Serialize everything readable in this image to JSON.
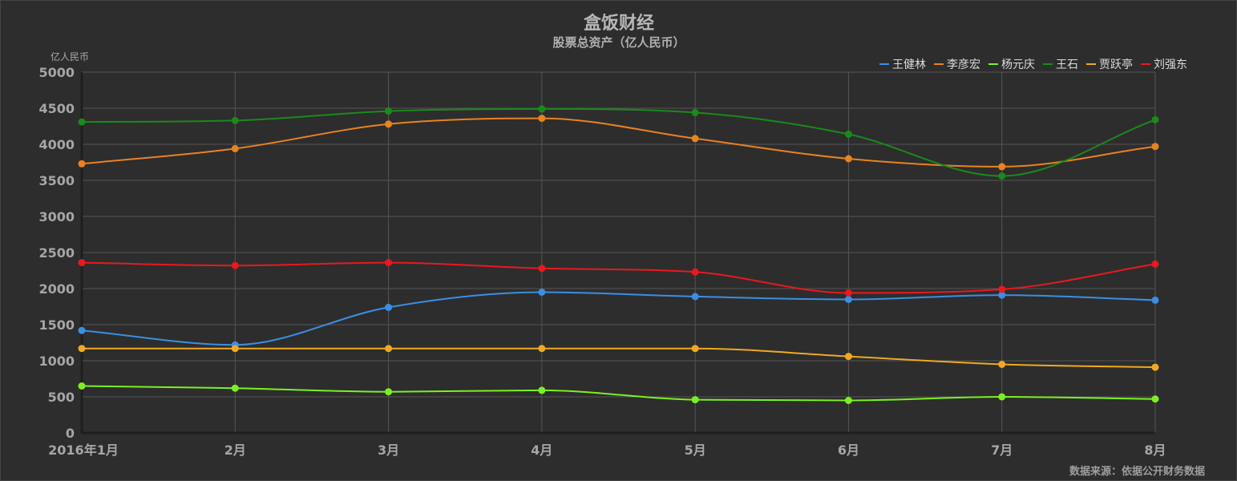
{
  "title": "盒饭财经",
  "subtitle": "股票总资产（亿人民币）",
  "source": "数据来源：依据公开财务数据",
  "chart_data": {
    "type": "line",
    "smooth": true,
    "ylabel": "亿人民币",
    "ylim": [
      0,
      5000
    ],
    "yticks": [
      0,
      500,
      1000,
      1500,
      2000,
      2500,
      3000,
      3500,
      4000,
      4500,
      5000
    ],
    "categories": [
      "2016年1月",
      "2月",
      "3月",
      "4月",
      "5月",
      "6月",
      "7月",
      "8月"
    ],
    "legend_position": "top-right",
    "grid": true,
    "series": [
      {
        "name": "王健林",
        "color": "#3a8ee6",
        "values": [
          1420,
          1220,
          1740,
          1950,
          1890,
          1850,
          1910,
          1840
        ]
      },
      {
        "name": "李彦宏",
        "color": "#e8831f",
        "values": [
          3730,
          3940,
          4280,
          4360,
          4080,
          3800,
          3690,
          3970
        ]
      },
      {
        "name": "杨元庆",
        "color": "#7cf01f",
        "values": [
          650,
          620,
          570,
          590,
          460,
          450,
          500,
          470
        ]
      },
      {
        "name": "王石",
        "color": "#1a8a1a",
        "values": [
          4310,
          4330,
          4460,
          4490,
          4440,
          4140,
          3560,
          4340
        ]
      },
      {
        "name": "贾跃亭",
        "color": "#f0a91f",
        "values": [
          1170,
          1170,
          1170,
          1170,
          1170,
          1060,
          950,
          910
        ]
      },
      {
        "name": "刘强东",
        "color": "#e8191f",
        "values": [
          2360,
          2320,
          2360,
          2280,
          2230,
          1940,
          1990,
          2340
        ]
      }
    ]
  }
}
